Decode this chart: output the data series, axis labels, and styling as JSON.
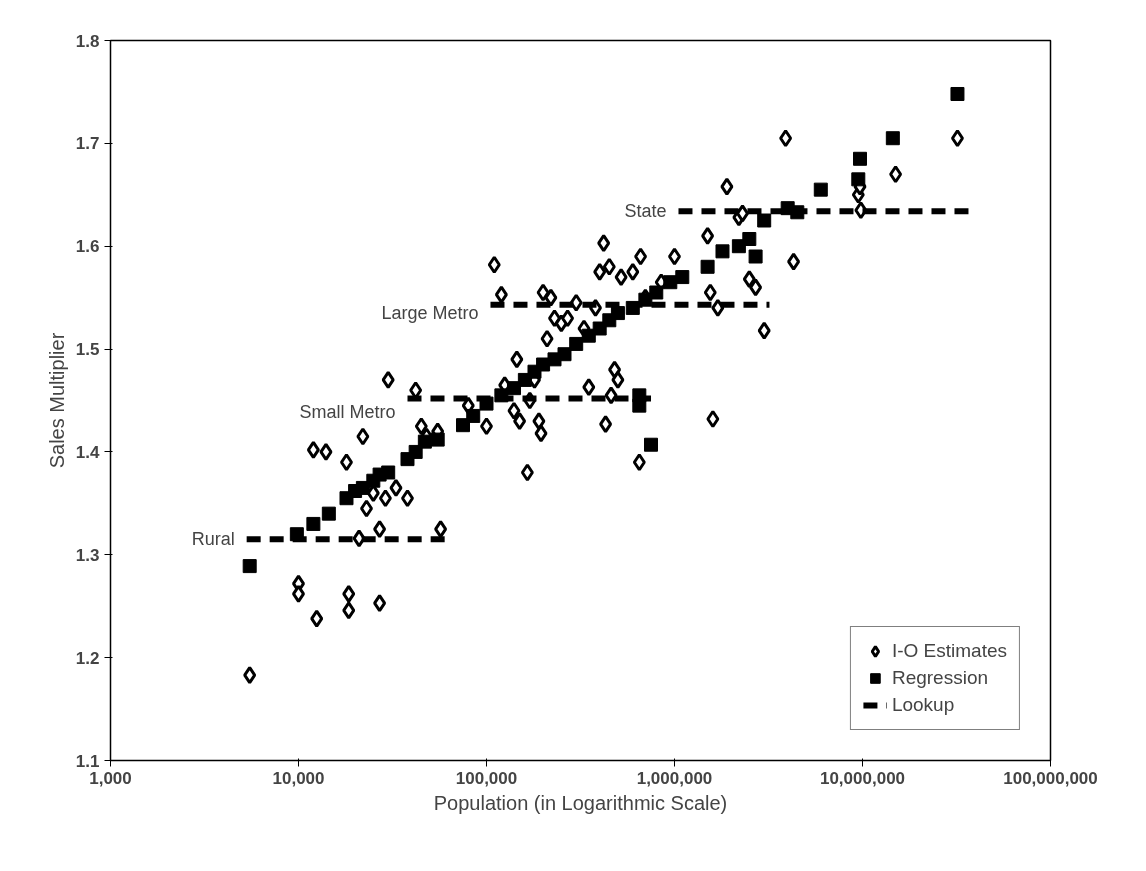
{
  "chart_data": {
    "type": "scatter",
    "xlabel": "Population (in Logarithmic Scale)",
    "ylabel": "Sales Multiplier",
    "log": "x",
    "grid": false,
    "legend": "bottom right",
    "xlim": [
      1000,
      100000000
    ],
    "ylim": [
      1.1,
      1.8
    ],
    "xticks": [
      {
        "value": 1000,
        "label": "1,000"
      },
      {
        "value": 10000,
        "label": "10,000"
      },
      {
        "value": 100000,
        "label": "100,000"
      },
      {
        "value": 1000000,
        "label": "1,000,000"
      },
      {
        "value": 10000000,
        "label": "10,000,000"
      },
      {
        "value": 100000000,
        "label": "100,000,000"
      }
    ],
    "yticks": [
      1.1,
      1.2,
      1.3,
      1.4,
      1.5,
      1.6,
      1.7,
      1.8
    ],
    "annotations": [
      "Rural",
      "Small Metro",
      "Large Metro",
      "State"
    ],
    "series": [
      {
        "name": "I-O Estimates",
        "color": "#000000",
        "marker": "diamond",
        "x": [
          5500,
          10000,
          10000,
          12000,
          12500,
          14000,
          18000,
          18500,
          18500,
          21000,
          22000,
          23000,
          25000,
          27000,
          27000,
          29000,
          30000,
          33000,
          38000,
          42000,
          45000,
          48000,
          55000,
          57000,
          80000,
          100000,
          110000,
          120000,
          125000,
          140000,
          145000,
          150000,
          165000,
          170000,
          180000,
          190000,
          195000,
          200000,
          210000,
          220000,
          230000,
          250000,
          270000,
          300000,
          330000,
          350000,
          380000,
          400000,
          420000,
          430000,
          450000,
          460000,
          480000,
          500000,
          520000,
          600000,
          650000,
          660000,
          700000,
          850000,
          1000000,
          1500000,
          1550000,
          1600000,
          1700000,
          1900000,
          2200000,
          2300000,
          2500000,
          2700000,
          3000000,
          3900000,
          4300000,
          9500000,
          9800000,
          9700000,
          15000000,
          32000000
        ],
        "values": [
          1.183,
          1.272,
          1.262,
          1.402,
          1.238,
          1.4,
          1.39,
          1.262,
          1.246,
          1.316,
          1.415,
          1.345,
          1.36,
          1.325,
          1.253,
          1.355,
          1.47,
          1.365,
          1.355,
          1.46,
          1.425,
          1.415,
          1.42,
          1.325,
          1.445,
          1.425,
          1.582,
          1.553,
          1.465,
          1.44,
          1.49,
          1.43,
          1.38,
          1.45,
          1.47,
          1.43,
          1.418,
          1.555,
          1.51,
          1.55,
          1.53,
          1.525,
          1.53,
          1.545,
          1.52,
          1.463,
          1.54,
          1.575,
          1.603,
          1.427,
          1.58,
          1.455,
          1.48,
          1.47,
          1.57,
          1.575,
          1.39,
          1.59,
          1.55,
          1.565,
          1.59,
          1.61,
          1.555,
          1.432,
          1.54,
          1.658,
          1.628,
          1.632,
          1.568,
          1.56,
          1.518,
          1.705,
          1.585,
          1.65,
          1.635,
          1.658,
          1.67,
          1.705
        ]
      },
      {
        "name": "Regression",
        "color": "#000000",
        "marker": "square",
        "x": [
          5500,
          9800,
          12000,
          14500,
          18000,
          20000,
          22000,
          25000,
          27000,
          30000,
          38000,
          42000,
          47000,
          55000,
          75000,
          85000,
          100000,
          120000,
          140000,
          160000,
          180000,
          200000,
          230000,
          260000,
          300000,
          350000,
          400000,
          450000,
          500000,
          600000,
          700000,
          800000,
          950000,
          1100000,
          1500000,
          1800000,
          2200000,
          2500000,
          2700000,
          3000000,
          4000000,
          4500000,
          6000000,
          9500000,
          9700000,
          14500000,
          32000000,
          650000,
          750000,
          650000
        ],
        "values": [
          1.289,
          1.32,
          1.33,
          1.34,
          1.355,
          1.362,
          1.365,
          1.372,
          1.378,
          1.38,
          1.393,
          1.4,
          1.41,
          1.412,
          1.426,
          1.435,
          1.447,
          1.455,
          1.462,
          1.47,
          1.478,
          1.485,
          1.49,
          1.495,
          1.505,
          1.513,
          1.52,
          1.528,
          1.535,
          1.54,
          1.548,
          1.555,
          1.565,
          1.57,
          1.58,
          1.595,
          1.6,
          1.607,
          1.59,
          1.625,
          1.637,
          1.633,
          1.655,
          1.665,
          1.685,
          1.705,
          1.748,
          1.445,
          1.407,
          1.455
        ]
      },
      {
        "name": "Lookup",
        "type": "line",
        "line_style": "dashed",
        "color": "#000000",
        "x": [
          5300,
          62000
        ],
        "values": [
          1.315,
          1.315
        ]
      },
      {
        "type": "line",
        "line_style": "dashed",
        "color": "#000000",
        "x": [
          38000,
          750000
        ],
        "values": [
          1.452,
          1.452
        ]
      },
      {
        "type": "line",
        "line_style": "dashed",
        "color": "#000000",
        "x": [
          105000,
          3200000
        ],
        "values": [
          1.543,
          1.543
        ]
      },
      {
        "type": "line",
        "line_style": "dashed",
        "color": "#000000",
        "x": [
          1050000,
          38000000
        ],
        "values": [
          1.634,
          1.634
        ]
      }
    ]
  }
}
